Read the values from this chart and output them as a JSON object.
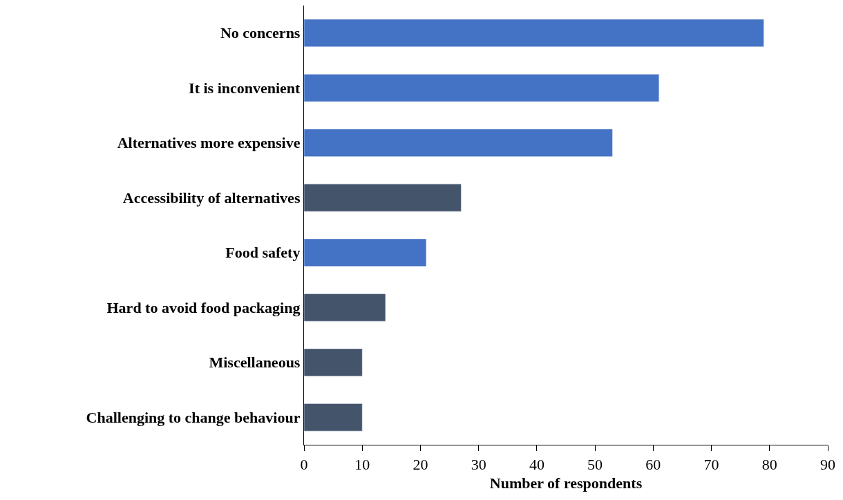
{
  "chart_data": {
    "type": "bar",
    "orientation": "horizontal",
    "xlabel": "Number of respondents",
    "categories": [
      "No concerns",
      "It is inconvenient",
      "Alternatives more expensive",
      "Accessibility of alternatives",
      "Food safety",
      "Hard to avoid food packaging",
      "Miscellaneous",
      "Challenging to change behaviour"
    ],
    "values": [
      79,
      61,
      53,
      27,
      21,
      14,
      10,
      10
    ],
    "colors": [
      "#4472c4",
      "#4472c4",
      "#4472c4",
      "#44546a",
      "#4472c4",
      "#44546a",
      "#44546a",
      "#44546a"
    ],
    "xlim": [
      0,
      90
    ],
    "xticks": [
      0,
      10,
      20,
      30,
      40,
      50,
      60,
      70,
      80,
      90
    ],
    "legend": false
  }
}
